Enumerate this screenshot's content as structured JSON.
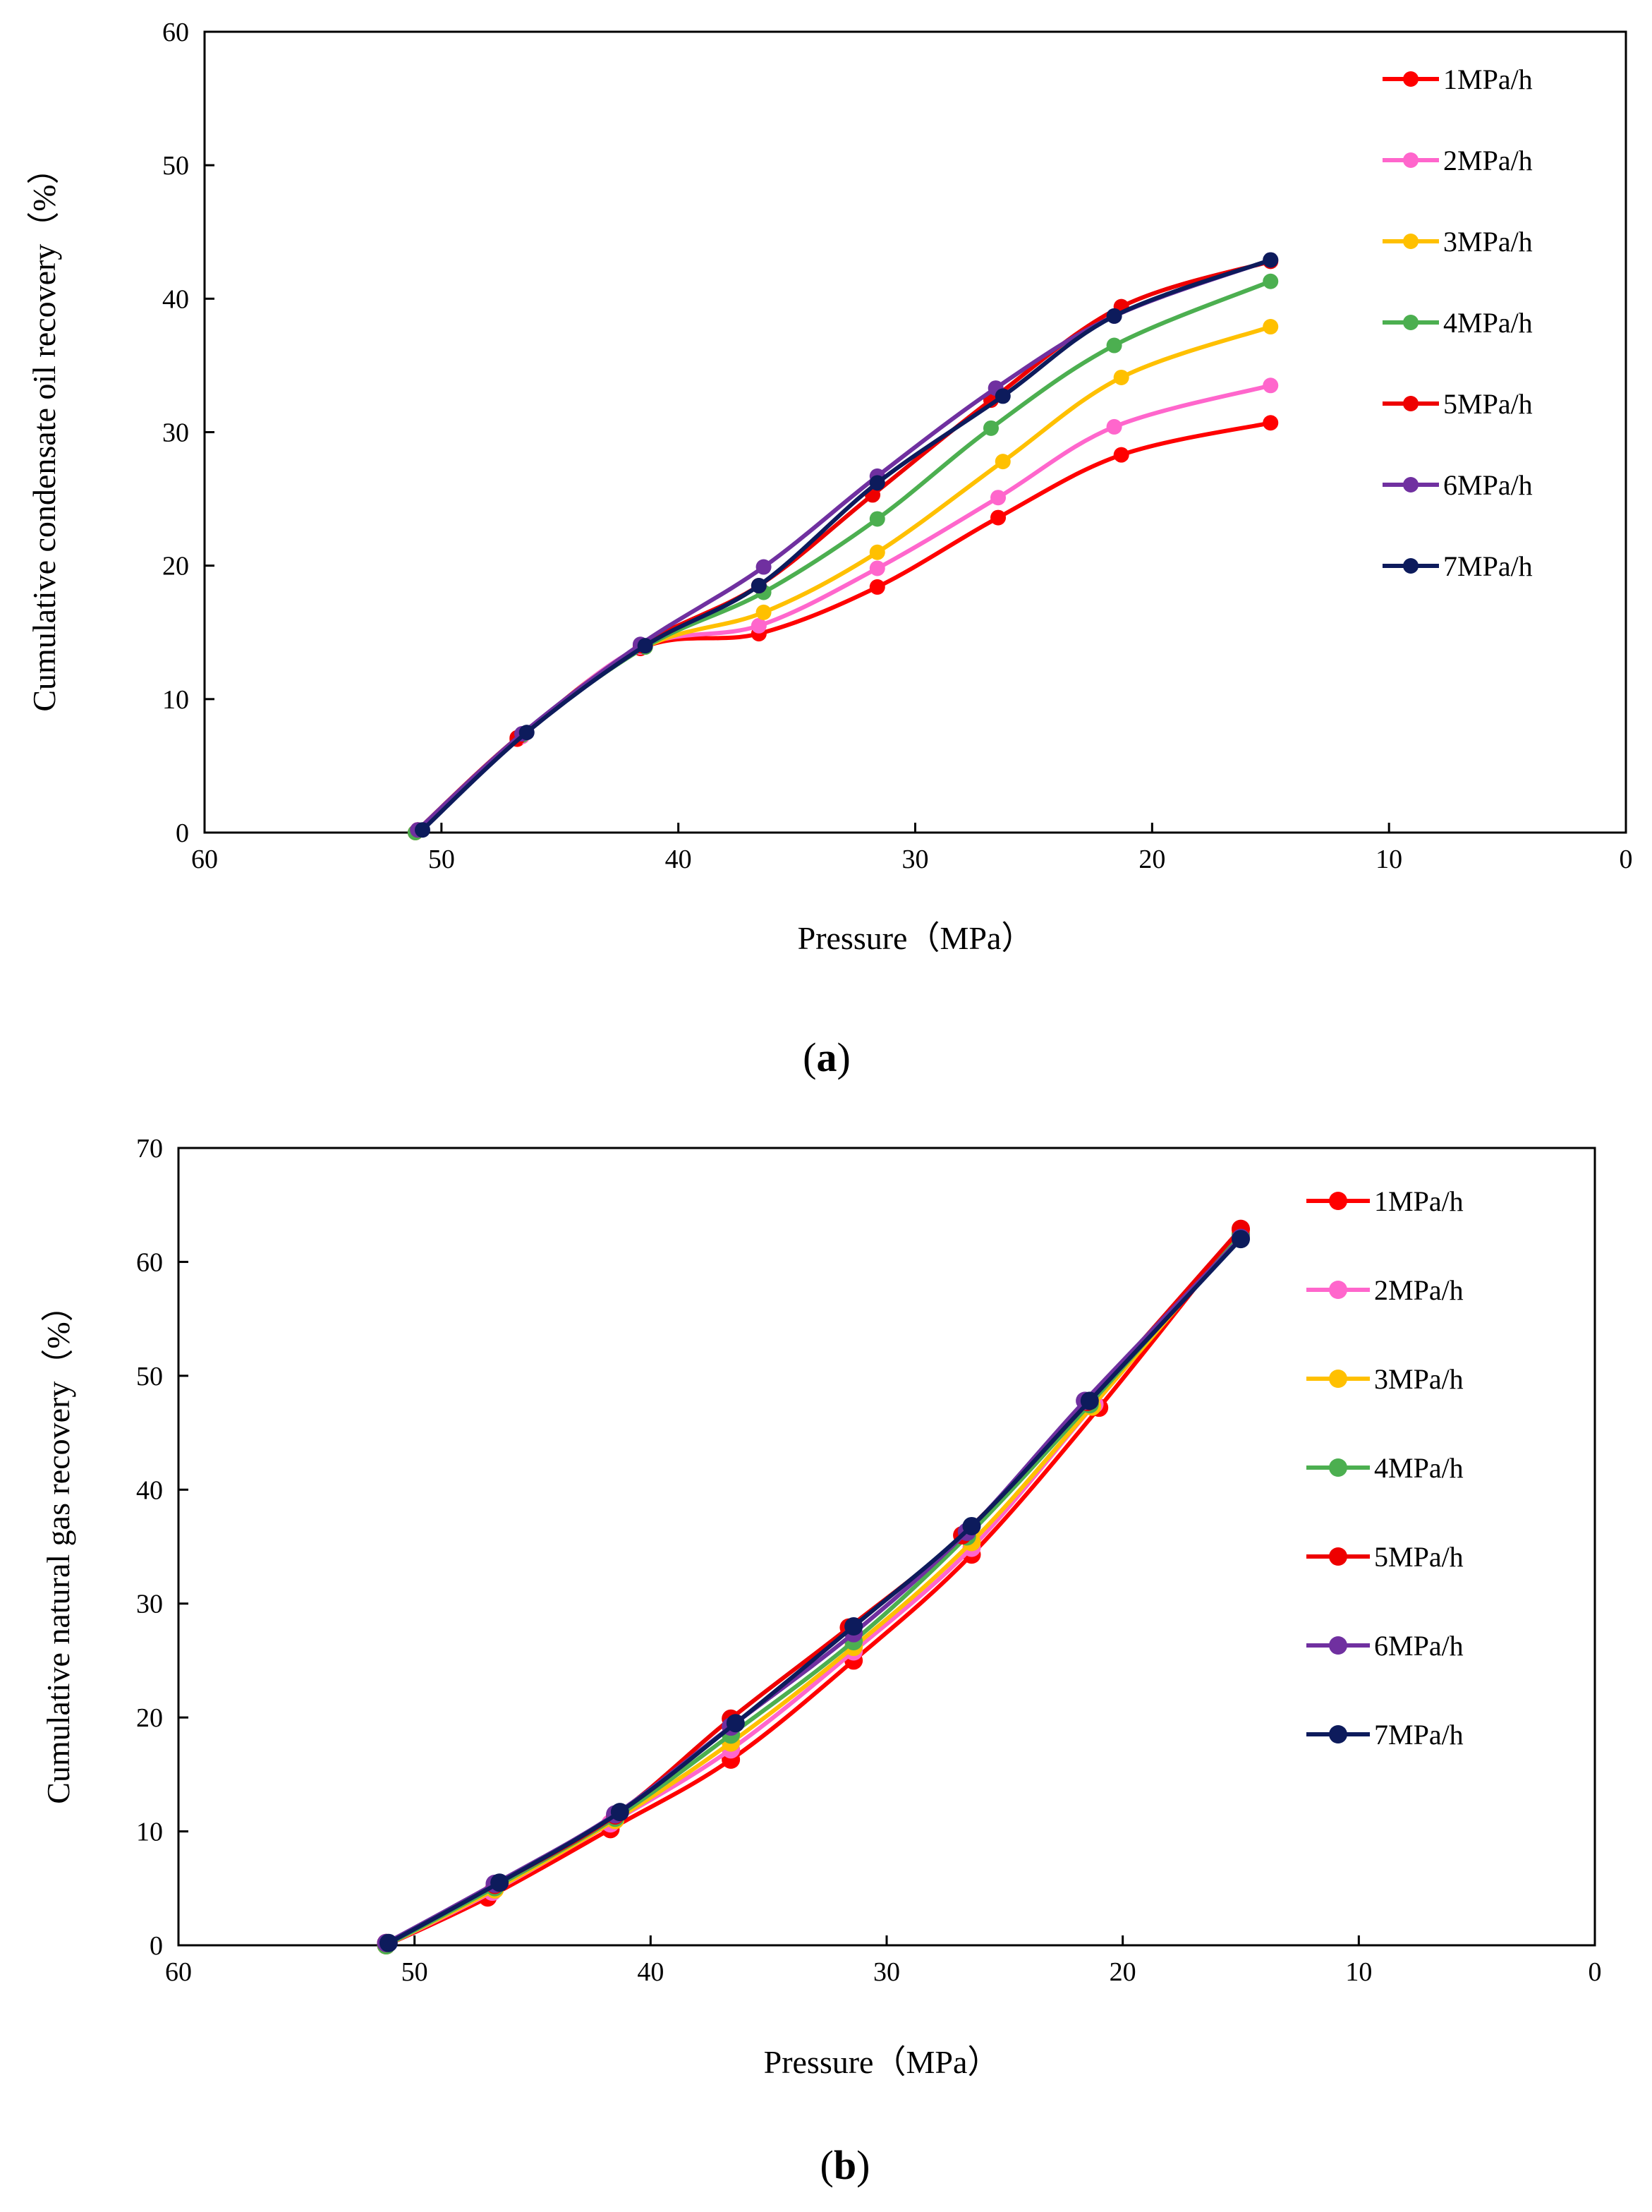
{
  "chart_data": [
    {
      "type": "line",
      "panel_label_open": "(",
      "panel_label_letter": "a",
      "panel_label_close": ")",
      "xlabel": "Pressure（MPa）",
      "ylabel": "Cumulative condensate oil recovery（%）",
      "xlim": [
        60,
        0
      ],
      "ylim": [
        0,
        60
      ],
      "xticks": [
        60,
        50,
        40,
        30,
        20,
        10,
        0
      ],
      "yticks": [
        0,
        10,
        20,
        30,
        40,
        50,
        60
      ],
      "legend_position": "right",
      "series": [
        {
          "name": "1MPa/h",
          "color": "#ff0000",
          "x": [
            51.1,
            46.8,
            41.6,
            36.6,
            31.6,
            26.5,
            21.3,
            15.0
          ],
          "y": [
            0,
            7.0,
            13.8,
            14.9,
            18.4,
            23.6,
            28.3,
            30.7
          ]
        },
        {
          "name": "2MPa/h",
          "color": "#ff66cc",
          "x": [
            51.1,
            46.6,
            41.6,
            36.6,
            31.6,
            26.5,
            21.6,
            15.0
          ],
          "y": [
            0,
            7.2,
            13.9,
            15.5,
            19.8,
            25.1,
            30.4,
            33.5
          ]
        },
        {
          "name": "3MPa/h",
          "color": "#ffc000",
          "x": [
            51.1,
            46.6,
            41.4,
            36.4,
            31.6,
            26.3,
            21.3,
            15.0
          ],
          "y": [
            0,
            7.3,
            13.9,
            16.5,
            21.0,
            27.8,
            34.1,
            37.9
          ]
        },
        {
          "name": "4MPa/h",
          "color": "#4caf50",
          "x": [
            51.1,
            46.6,
            41.4,
            36.4,
            31.6,
            26.8,
            21.6,
            15.0
          ],
          "y": [
            0,
            7.3,
            13.9,
            18.0,
            23.5,
            30.3,
            36.5,
            41.3
          ]
        },
        {
          "name": "5MPa/h",
          "color": "#ee0000",
          "x": [
            51.0,
            46.8,
            41.6,
            36.6,
            31.8,
            26.8,
            21.3,
            15.0
          ],
          "y": [
            0.2,
            7.1,
            14.0,
            18.5,
            25.3,
            32.4,
            39.4,
            42.8
          ]
        },
        {
          "name": "6MPa/h",
          "color": "#7030a0",
          "x": [
            51.0,
            46.6,
            41.6,
            36.4,
            31.6,
            26.6,
            21.6,
            15.0
          ],
          "y": [
            0.2,
            7.4,
            14.1,
            19.9,
            26.7,
            33.3,
            38.7,
            42.9
          ]
        },
        {
          "name": "7MPa/h",
          "color": "#0d1b5c",
          "x": [
            50.8,
            46.4,
            41.4,
            36.6,
            31.6,
            26.3,
            21.6,
            15.0
          ],
          "y": [
            0.2,
            7.5,
            14.0,
            18.5,
            26.2,
            32.7,
            38.7,
            42.9
          ]
        }
      ]
    },
    {
      "type": "line",
      "panel_label_open": "(",
      "panel_label_letter": "b",
      "panel_label_close": ")",
      "xlabel": "Pressure（MPa）",
      "ylabel": "Cumulative natural gas recovery（%）",
      "xlim": [
        60,
        0
      ],
      "ylim": [
        0,
        70
      ],
      "xticks": [
        60,
        50,
        40,
        30,
        20,
        10,
        0
      ],
      "yticks": [
        0,
        10,
        20,
        30,
        40,
        50,
        60,
        70
      ],
      "legend_position": "right",
      "series": [
        {
          "name": "1MPa/h",
          "color": "#ff0000",
          "x": [
            51.2,
            46.9,
            41.7,
            36.6,
            31.4,
            26.4,
            21.0,
            15.0
          ],
          "y": [
            0,
            4.2,
            10.2,
            16.3,
            25.0,
            34.3,
            47.2,
            62.8
          ]
        },
        {
          "name": "2MPa/h",
          "color": "#ff66cc",
          "x": [
            51.2,
            46.7,
            41.7,
            36.6,
            31.4,
            26.4,
            21.2,
            15.0
          ],
          "y": [
            0,
            4.7,
            10.7,
            17.2,
            25.8,
            34.9,
            47.5,
            62.6
          ]
        },
        {
          "name": "3MPa/h",
          "color": "#ffc000",
          "x": [
            51.2,
            46.6,
            41.5,
            36.6,
            31.4,
            26.4,
            21.3,
            15.0
          ],
          "y": [
            0,
            4.9,
            11.0,
            17.8,
            26.2,
            35.4,
            47.3,
            62.5
          ]
        },
        {
          "name": "4MPa/h",
          "color": "#4caf50",
          "x": [
            51.2,
            46.6,
            41.5,
            36.6,
            31.4,
            26.6,
            21.4,
            15.0
          ],
          "y": [
            0,
            5.1,
            11.2,
            18.5,
            26.7,
            35.9,
            47.5,
            62.4
          ]
        },
        {
          "name": "5MPa/h",
          "color": "#ee0000",
          "x": [
            51.2,
            46.6,
            41.5,
            36.6,
            31.6,
            26.8,
            21.5,
            15.0
          ],
          "y": [
            0.2,
            5.3,
            11.4,
            19.9,
            27.9,
            36.0,
            47.7,
            62.9
          ]
        },
        {
          "name": "6MPa/h",
          "color": "#7030a0",
          "x": [
            51.2,
            46.6,
            41.5,
            36.6,
            31.4,
            26.6,
            21.6,
            15.0
          ],
          "y": [
            0.2,
            5.4,
            11.5,
            19.2,
            27.4,
            36.3,
            47.8,
            62.1
          ]
        },
        {
          "name": "7MPa/h",
          "color": "#0d1b5c",
          "x": [
            51.1,
            46.4,
            41.3,
            36.4,
            31.4,
            26.4,
            21.4,
            15.0
          ],
          "y": [
            0.2,
            5.5,
            11.7,
            19.5,
            28.0,
            36.8,
            47.8,
            62.0
          ]
        }
      ]
    }
  ]
}
